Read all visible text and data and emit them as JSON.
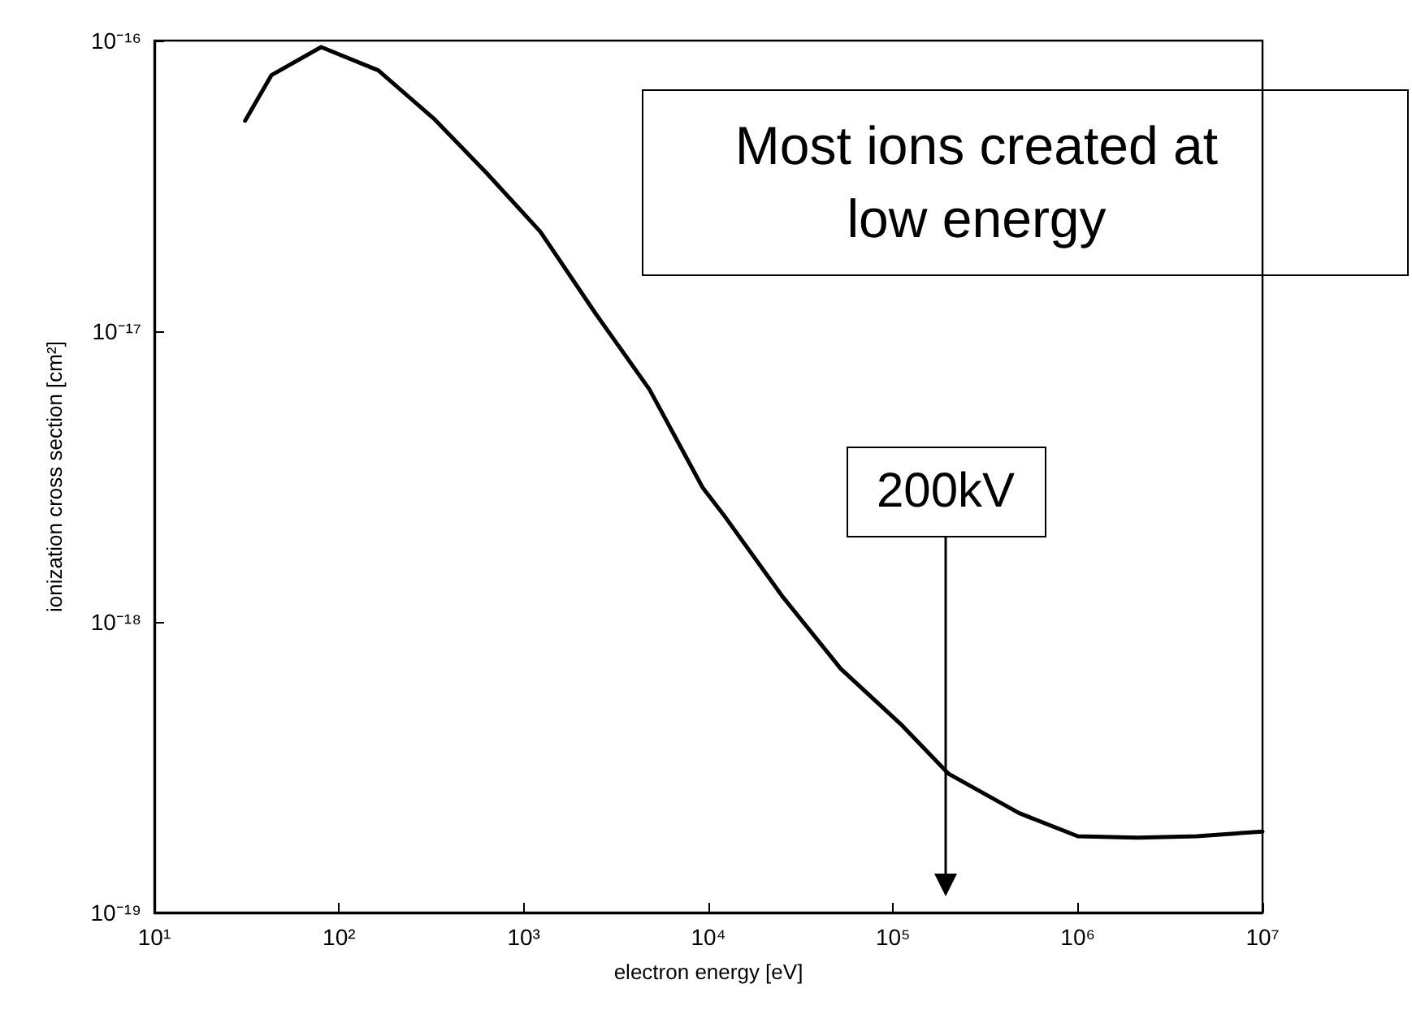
{
  "chart_data": {
    "type": "line",
    "xlabel": "electron energy [eV]",
    "ylabel": "ionization cross section [cm²]",
    "log": "xy",
    "xlim": [
      10,
      10000000
    ],
    "ylim": [
      1e-19,
      1e-16
    ],
    "xticks": [
      {
        "value": 10,
        "label": "10¹"
      },
      {
        "value": 100,
        "label": "10²"
      },
      {
        "value": 1000,
        "label": "10³"
      },
      {
        "value": 10000,
        "label": "10⁴"
      },
      {
        "value": 100000,
        "label": "10⁵"
      },
      {
        "value": 1000000,
        "label": "10⁶"
      },
      {
        "value": 10000000,
        "label": "10⁷"
      }
    ],
    "yticks": [
      {
        "value": 1e-19,
        "label": "10⁻¹⁹"
      },
      {
        "value": 1e-18,
        "label": "10⁻¹⁸"
      },
      {
        "value": 1e-17,
        "label": "10⁻¹⁷"
      },
      {
        "value": 1e-16,
        "label": "10⁻¹⁶"
      }
    ],
    "x": [
      31,
      43,
      80,
      163,
      325,
      630,
      1230,
      2450,
      4800,
      9300,
      12000,
      25000,
      52000,
      112000,
      200000,
      480000,
      1000000,
      2100000,
      4400000,
      10000000
    ],
    "series": [
      {
        "color": "#000000",
        "values": [
          5.3e-17,
          7.6e-17,
          9.5e-17,
          7.9e-17,
          5.4e-17,
          3.5e-17,
          2.2e-17,
          1.15e-17,
          6.3e-18,
          2.9e-18,
          2.35e-18,
          1.23e-18,
          6.9e-19,
          4.4e-19,
          3e-19,
          2.2e-19,
          1.83e-19,
          1.81e-19,
          1.83e-19,
          1.9e-19
        ]
      }
    ],
    "marker": "none",
    "line_style": "solid",
    "grid": false,
    "annotations": [
      "Most ions created at low energy",
      "200kV"
    ]
  }
}
